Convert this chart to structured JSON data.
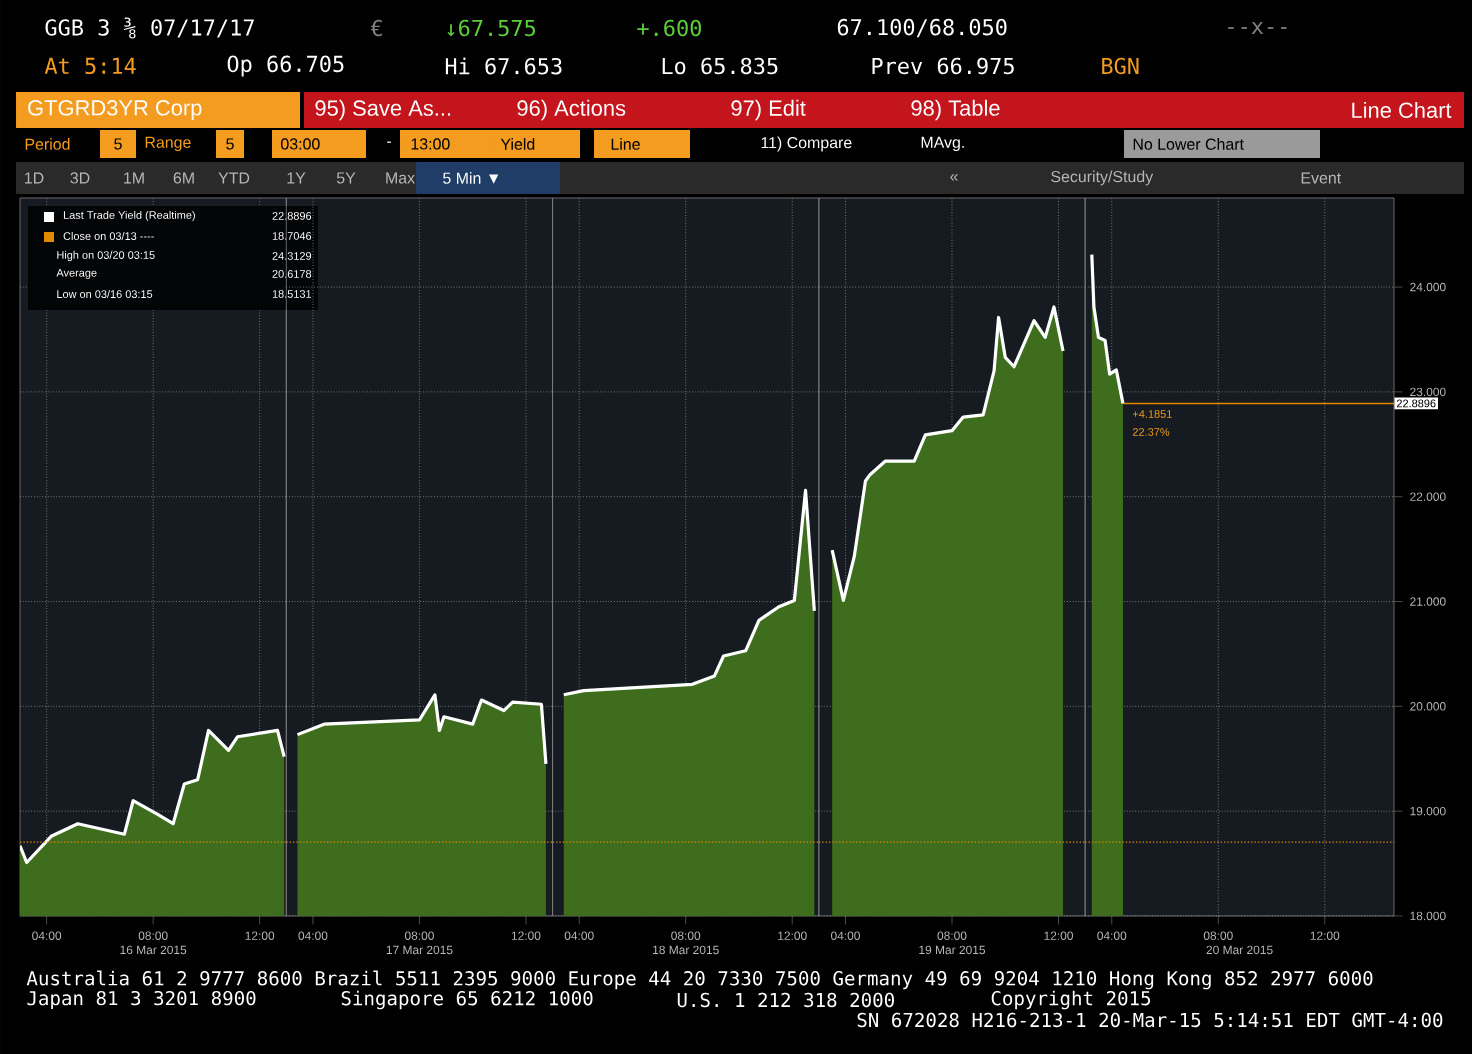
{
  "chart_data": [
    {
      "type": "area",
      "title": "GTGRD3YR Corp",
      "xlabel": "16 Mar 2015",
      "series": [
        {
          "name": "Last Trade Yield (Realtime)",
          "color": "#3e6d1d",
          "x": [
            3.0,
            3.25,
            4.17,
            5.17,
            6.92,
            7.25,
            8.17,
            8.75,
            9.17,
            9.67,
            10.08,
            10.83,
            11.17,
            12.67,
            12.92
          ],
          "values": [
            18.67,
            18.51,
            18.76,
            18.88,
            18.78,
            19.1,
            18.97,
            18.88,
            19.26,
            19.3,
            19.77,
            19.58,
            19.71,
            19.77,
            19.52
          ]
        }
      ],
      "xlim": [
        3,
        13
      ],
      "ylim": [
        18,
        24.85
      ],
      "xticks": [
        {
          "value": 4,
          "label": "04:00"
        },
        {
          "value": 8,
          "label": "08:00"
        },
        {
          "value": 12,
          "label": "12:00"
        }
      ],
      "yticks": [
        18,
        19,
        20,
        21,
        22,
        23,
        24
      ],
      "tick_labels": "x",
      "grid": true,
      "legend": "top left",
      "ref_lines": [
        {
          "axis": "y",
          "value": 18.7046,
          "label": "Close on 03/13 ----",
          "color": "#e08a00",
          "line_style": "dotted"
        }
      ],
      "annotations": [
        "GGB 3 ⅜ 07/17/17",
        "€",
        "↓67.575",
        "+.600",
        "67.100/68.050",
        "--x--",
        "At 5:14",
        "Op 66.705",
        "Hi 67.653",
        "Lo 65.835",
        "Prev 66.975",
        "BGN",
        "95) Save As...",
        "96) Actions",
        "97) Edit",
        "98) Table",
        "Line Chart",
        "Period",
        "5",
        "Range",
        "5",
        "03:00",
        "-",
        "13:00",
        "Yield",
        "Line",
        "11) Compare",
        "MAvg.",
        "No Lower Chart",
        "1D",
        "3D",
        "1M",
        "6M",
        "YTD",
        "1Y",
        "5Y",
        "Max",
        "5 Min ▼",
        "«",
        "Security/Study",
        "Event",
        "Australia 61 2 9777 8600 Brazil 5511 2395 9000 Europe 44 20 7330 7500 Germany 49 69 9204 1210 Hong Kong 852 2977 6000",
        "Japan 81 3 3201 8900",
        "Singapore 65 6212 1000",
        "U.S. 1 212 318 2000",
        "Copyright 2015",
        "SN 672028 H216-213-1 20-Mar-15 5:14:51 EDT GMT-4:00",
        "22.8896",
        "18.7046",
        "High on 03/20 03:15",
        "24.3129",
        "Average",
        "20.6178",
        "Low on 03/16 03:15",
        "18.5131",
        "+4.1851",
        "22.37%"
      ]
    },
    {
      "type": "area",
      "xlabel": "17 Mar 2015",
      "series": [
        {
          "color": "#3e6d1d",
          "x": [
            3.42,
            4.42,
            8.0,
            8.58,
            8.75,
            8.92,
            10.0,
            10.33,
            11.17,
            11.5,
            12.58,
            12.75
          ],
          "values": [
            19.73,
            19.83,
            19.87,
            20.11,
            19.77,
            19.9,
            19.83,
            20.06,
            19.96,
            20.04,
            20.02,
            19.45
          ]
        }
      ],
      "xlim": [
        3,
        13
      ],
      "ylim": [
        18,
        24.85
      ],
      "xticks": [
        {
          "value": 4,
          "label": "04:00"
        },
        {
          "value": 8,
          "label": "08:00"
        },
        {
          "value": 12,
          "label": "12:00"
        }
      ],
      "yticks": [
        18,
        19,
        20,
        21,
        22,
        23,
        24
      ],
      "tick_labels": "x",
      "grid": true,
      "ref_lines": [
        {
          "axis": "y",
          "value": 18.7046,
          "color": "#e08a00",
          "line_style": "dotted"
        }
      ]
    },
    {
      "type": "area",
      "xlabel": "18 Mar 2015",
      "series": [
        {
          "color": "#3e6d1d",
          "x": [
            3.42,
            4.17,
            8.25,
            9.08,
            9.42,
            10.25,
            10.75,
            11.5,
            12.08,
            12.5,
            12.83
          ],
          "values": [
            20.11,
            20.15,
            20.21,
            20.29,
            20.48,
            20.53,
            20.82,
            20.95,
            21.01,
            22.06,
            20.91
          ]
        }
      ],
      "xlim": [
        3,
        13
      ],
      "ylim": [
        18,
        24.85
      ],
      "xticks": [
        {
          "value": 4,
          "label": "04:00"
        },
        {
          "value": 8,
          "label": "08:00"
        },
        {
          "value": 12,
          "label": "12:00"
        }
      ],
      "yticks": [
        18,
        19,
        20,
        21,
        22,
        23,
        24
      ],
      "tick_labels": "x",
      "grid": true,
      "ref_lines": [
        {
          "axis": "y",
          "value": 18.7046,
          "color": "#e08a00",
          "line_style": "dotted"
        }
      ]
    },
    {
      "type": "area",
      "xlabel": "19 Mar 2015",
      "series": [
        {
          "color": "#3e6d1d",
          "x": [
            3.5,
            3.92,
            4.33,
            4.75,
            4.92,
            5.5,
            6.58,
            7.0,
            8.0,
            8.42,
            9.17,
            9.58,
            9.75,
            10.0,
            10.33,
            11.08,
            11.5,
            11.83,
            12.17
          ],
          "values": [
            21.49,
            21.01,
            21.43,
            22.15,
            22.21,
            22.34,
            22.34,
            22.59,
            22.63,
            22.76,
            22.78,
            23.2,
            23.71,
            23.33,
            23.24,
            23.68,
            23.52,
            23.81,
            23.39
          ]
        }
      ],
      "xlim": [
        3,
        13
      ],
      "ylim": [
        18,
        24.85
      ],
      "xticks": [
        {
          "value": 4,
          "label": "04:00"
        },
        {
          "value": 8,
          "label": "08:00"
        },
        {
          "value": 12,
          "label": "12:00"
        }
      ],
      "yticks": [
        18,
        19,
        20,
        21,
        22,
        23,
        24
      ],
      "tick_labels": "x",
      "grid": true,
      "ref_lines": [
        {
          "axis": "y",
          "value": 18.7046,
          "color": "#e08a00",
          "line_style": "dotted"
        }
      ]
    },
    {
      "type": "area",
      "xlabel": "20 Mar 2015",
      "series": [
        {
          "color": "#3e6d1d",
          "x": [
            3.25,
            3.33,
            3.5,
            3.75,
            3.92,
            4.17,
            4.42
          ],
          "values": [
            24.31,
            23.81,
            23.52,
            23.49,
            23.17,
            23.21,
            22.89
          ]
        }
      ],
      "xlim": [
        3,
        14.6
      ],
      "ylim": [
        18,
        24.85
      ],
      "xticks": [
        {
          "value": 4,
          "label": "04:00"
        },
        {
          "value": 8,
          "label": "08:00"
        },
        {
          "value": 12,
          "label": "12:00"
        }
      ],
      "yticks": [
        {
          "value": 18,
          "label": "18.000"
        },
        {
          "value": 19,
          "label": "19.000"
        },
        {
          "value": 20,
          "label": "20.000"
        },
        {
          "value": 21,
          "label": "21.000"
        },
        {
          "value": 22,
          "label": "22.000"
        },
        {
          "value": 23,
          "label": "23.000"
        },
        {
          "value": 24,
          "label": "24.000"
        }
      ],
      "grid": true,
      "ref_lines": [
        {
          "axis": "y",
          "value": 18.7046,
          "color": "#e08a00",
          "line_style": "dotted"
        },
        {
          "axis": "y",
          "value": 22.8896,
          "label": "22.8896",
          "color": "#e08a00",
          "line_style": "solid"
        }
      ]
    }
  ]
}
